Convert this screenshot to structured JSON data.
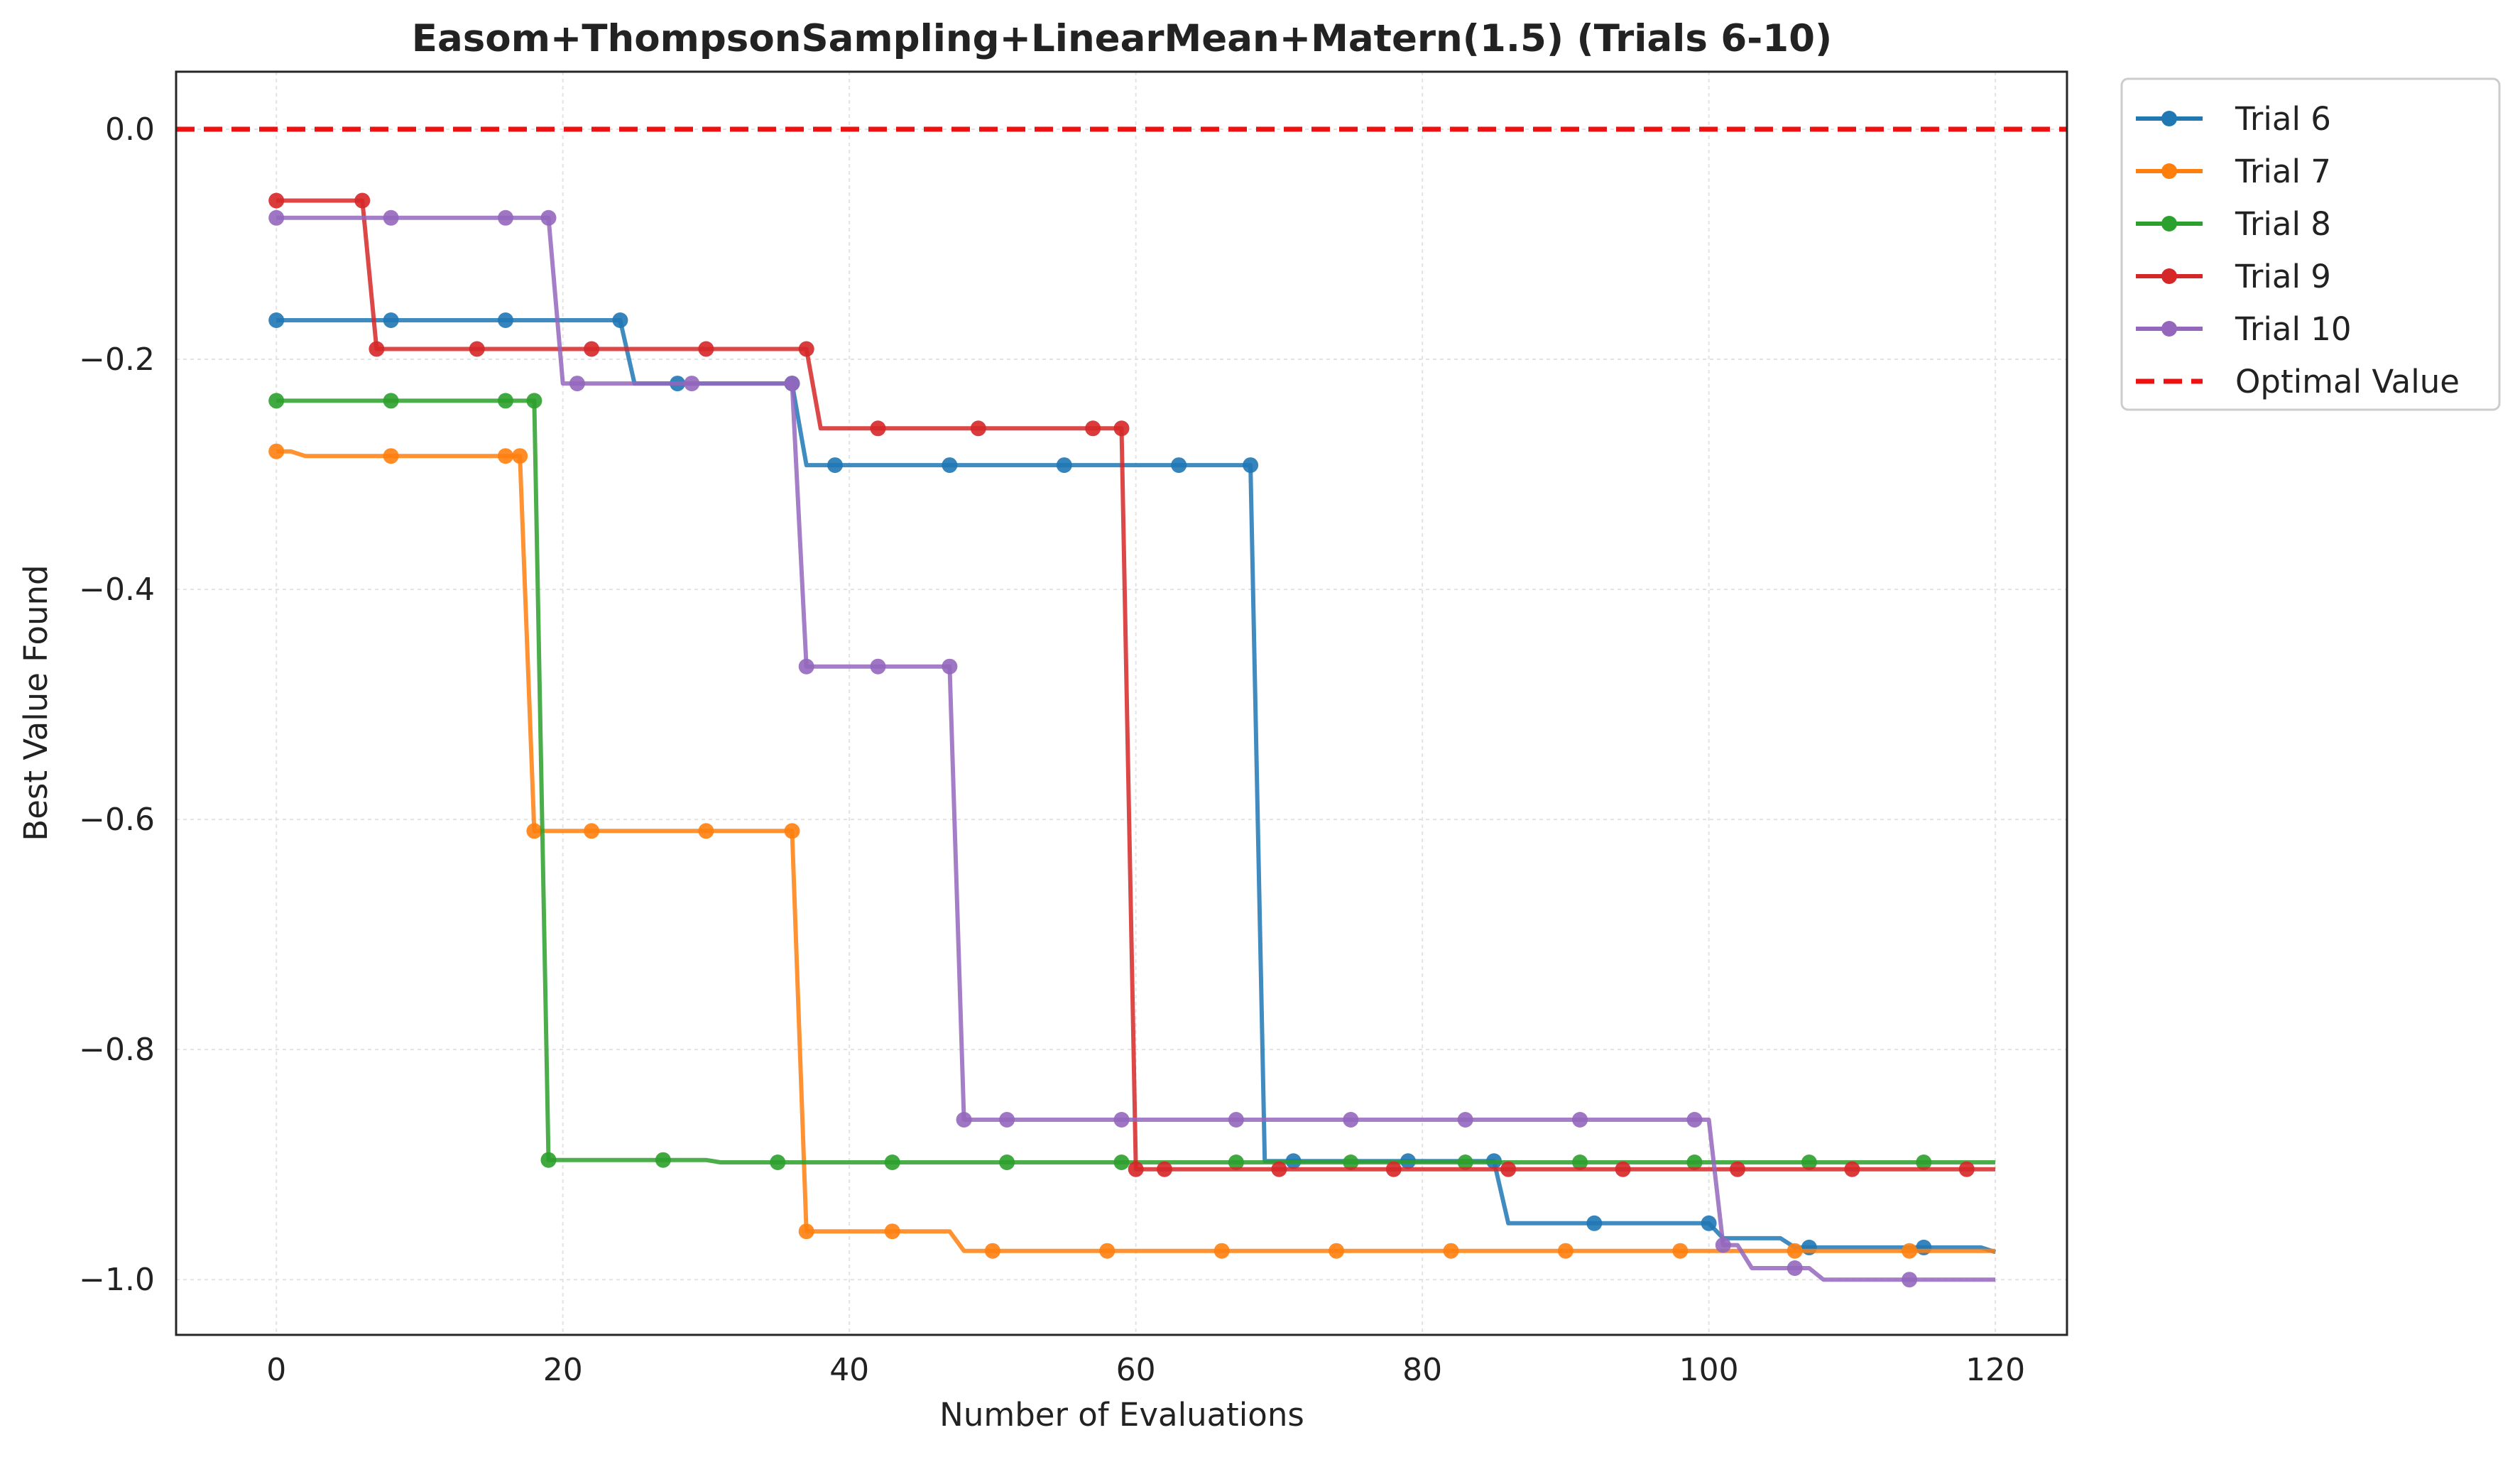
{
  "chart_data": {
    "type": "line",
    "title": "Easom+ThompsonSampling+LinearMean+Matern(1.5) (Trials 6-10)",
    "xlabel": "Number of Evaluations",
    "ylabel": "Best Value Found",
    "xlim": [
      -7,
      125
    ],
    "ylim": [
      -1.048,
      0.05
    ],
    "xticks": [
      0,
      20,
      40,
      60,
      80,
      100,
      120
    ],
    "yticks": [
      0.0,
      -0.2,
      -0.4,
      -0.6,
      -0.8,
      -1.0
    ],
    "xtick_labels": [
      "0",
      "20",
      "40",
      "60",
      "80",
      "100",
      "120"
    ],
    "ytick_labels": [
      "0.0",
      "−0.2",
      "−0.4",
      "−0.6",
      "−0.8",
      "−1.0"
    ],
    "grid": true,
    "legend_position": "outside-top-right",
    "series": [
      {
        "name": "Trial 6",
        "color": "#1f77b4",
        "points": [
          [
            0,
            -0.166
          ],
          [
            24,
            -0.166
          ],
          [
            25,
            -0.221
          ],
          [
            36,
            -0.221
          ],
          [
            37,
            -0.292
          ],
          [
            68,
            -0.292
          ],
          [
            69,
            -0.897
          ],
          [
            85,
            -0.897
          ],
          [
            86,
            -0.951
          ],
          [
            100,
            -0.951
          ],
          [
            101,
            -0.964
          ],
          [
            105,
            -0.964
          ],
          [
            106,
            -0.972
          ],
          [
            119,
            -0.972
          ],
          [
            120,
            -0.976
          ]
        ],
        "markers": [
          [
            0,
            -0.166
          ],
          [
            8,
            -0.166
          ],
          [
            16,
            -0.166
          ],
          [
            24,
            -0.166
          ],
          [
            28,
            -0.221
          ],
          [
            36,
            -0.221
          ],
          [
            39,
            -0.292
          ],
          [
            47,
            -0.292
          ],
          [
            55,
            -0.292
          ],
          [
            63,
            -0.292
          ],
          [
            68,
            -0.292
          ],
          [
            71,
            -0.897
          ],
          [
            79,
            -0.897
          ],
          [
            85,
            -0.897
          ],
          [
            92,
            -0.951
          ],
          [
            100,
            -0.951
          ],
          [
            107,
            -0.972
          ],
          [
            115,
            -0.972
          ]
        ]
      },
      {
        "name": "Trial 7",
        "color": "#ff7f0e",
        "points": [
          [
            0,
            -0.28
          ],
          [
            1,
            -0.28
          ],
          [
            2,
            -0.284
          ],
          [
            17,
            -0.284
          ],
          [
            18,
            -0.61
          ],
          [
            36,
            -0.61
          ],
          [
            37,
            -0.958
          ],
          [
            47,
            -0.958
          ],
          [
            48,
            -0.975
          ],
          [
            120,
            -0.975
          ]
        ],
        "markers": [
          [
            0,
            -0.28
          ],
          [
            8,
            -0.284
          ],
          [
            16,
            -0.284
          ],
          [
            17,
            -0.284
          ],
          [
            18,
            -0.61
          ],
          [
            22,
            -0.61
          ],
          [
            30,
            -0.61
          ],
          [
            36,
            -0.61
          ],
          [
            37,
            -0.958
          ],
          [
            43,
            -0.958
          ],
          [
            50,
            -0.975
          ],
          [
            58,
            -0.975
          ],
          [
            66,
            -0.975
          ],
          [
            74,
            -0.975
          ],
          [
            82,
            -0.975
          ],
          [
            90,
            -0.975
          ],
          [
            98,
            -0.975
          ],
          [
            106,
            -0.975
          ],
          [
            114,
            -0.975
          ]
        ]
      },
      {
        "name": "Trial 8",
        "color": "#2ca02c",
        "points": [
          [
            0,
            -0.236
          ],
          [
            18,
            -0.236
          ],
          [
            19,
            -0.896
          ],
          [
            30,
            -0.896
          ],
          [
            31,
            -0.898
          ],
          [
            120,
            -0.898
          ]
        ],
        "markers": [
          [
            0,
            -0.236
          ],
          [
            8,
            -0.236
          ],
          [
            16,
            -0.236
          ],
          [
            18,
            -0.236
          ],
          [
            19,
            -0.896
          ],
          [
            27,
            -0.896
          ],
          [
            35,
            -0.898
          ],
          [
            43,
            -0.898
          ],
          [
            51,
            -0.898
          ],
          [
            59,
            -0.898
          ],
          [
            67,
            -0.898
          ],
          [
            75,
            -0.898
          ],
          [
            83,
            -0.898
          ],
          [
            91,
            -0.898
          ],
          [
            99,
            -0.898
          ],
          [
            107,
            -0.898
          ],
          [
            115,
            -0.898
          ]
        ]
      },
      {
        "name": "Trial 9",
        "color": "#d62728",
        "points": [
          [
            0,
            -0.062
          ],
          [
            6,
            -0.062
          ],
          [
            7,
            -0.191
          ],
          [
            37,
            -0.191
          ],
          [
            38,
            -0.26
          ],
          [
            59,
            -0.26
          ],
          [
            60,
            -0.904
          ],
          [
            120,
            -0.904
          ]
        ],
        "markers": [
          [
            0,
            -0.062
          ],
          [
            6,
            -0.062
          ],
          [
            7,
            -0.191
          ],
          [
            14,
            -0.191
          ],
          [
            22,
            -0.191
          ],
          [
            30,
            -0.191
          ],
          [
            37,
            -0.191
          ],
          [
            42,
            -0.26
          ],
          [
            49,
            -0.26
          ],
          [
            57,
            -0.26
          ],
          [
            59,
            -0.26
          ],
          [
            60,
            -0.904
          ],
          [
            62,
            -0.904
          ],
          [
            70,
            -0.904
          ],
          [
            78,
            -0.904
          ],
          [
            86,
            -0.904
          ],
          [
            94,
            -0.904
          ],
          [
            102,
            -0.904
          ],
          [
            110,
            -0.904
          ],
          [
            118,
            -0.904
          ]
        ]
      },
      {
        "name": "Trial 10",
        "color": "#9467bd",
        "points": [
          [
            0,
            -0.077
          ],
          [
            19,
            -0.077
          ],
          [
            20,
            -0.221
          ],
          [
            36,
            -0.221
          ],
          [
            37,
            -0.467
          ],
          [
            47,
            -0.467
          ],
          [
            48,
            -0.861
          ],
          [
            100,
            -0.861
          ],
          [
            101,
            -0.97
          ],
          [
            102,
            -0.97
          ],
          [
            103,
            -0.99
          ],
          [
            107,
            -0.99
          ],
          [
            108,
            -1.0
          ],
          [
            120,
            -1.0
          ]
        ],
        "markers": [
          [
            0,
            -0.077
          ],
          [
            8,
            -0.077
          ],
          [
            16,
            -0.077
          ],
          [
            19,
            -0.077
          ],
          [
            21,
            -0.221
          ],
          [
            29,
            -0.221
          ],
          [
            36,
            -0.221
          ],
          [
            37,
            -0.467
          ],
          [
            42,
            -0.467
          ],
          [
            47,
            -0.467
          ],
          [
            48,
            -0.861
          ],
          [
            51,
            -0.861
          ],
          [
            59,
            -0.861
          ],
          [
            67,
            -0.861
          ],
          [
            75,
            -0.861
          ],
          [
            83,
            -0.861
          ],
          [
            91,
            -0.861
          ],
          [
            99,
            -0.861
          ],
          [
            101,
            -0.97
          ],
          [
            106,
            -0.99
          ],
          [
            114,
            -1.0
          ]
        ]
      },
      {
        "name": "Optimal Value",
        "color": "#ee1111",
        "dashed": true,
        "value": 0.0
      }
    ]
  }
}
